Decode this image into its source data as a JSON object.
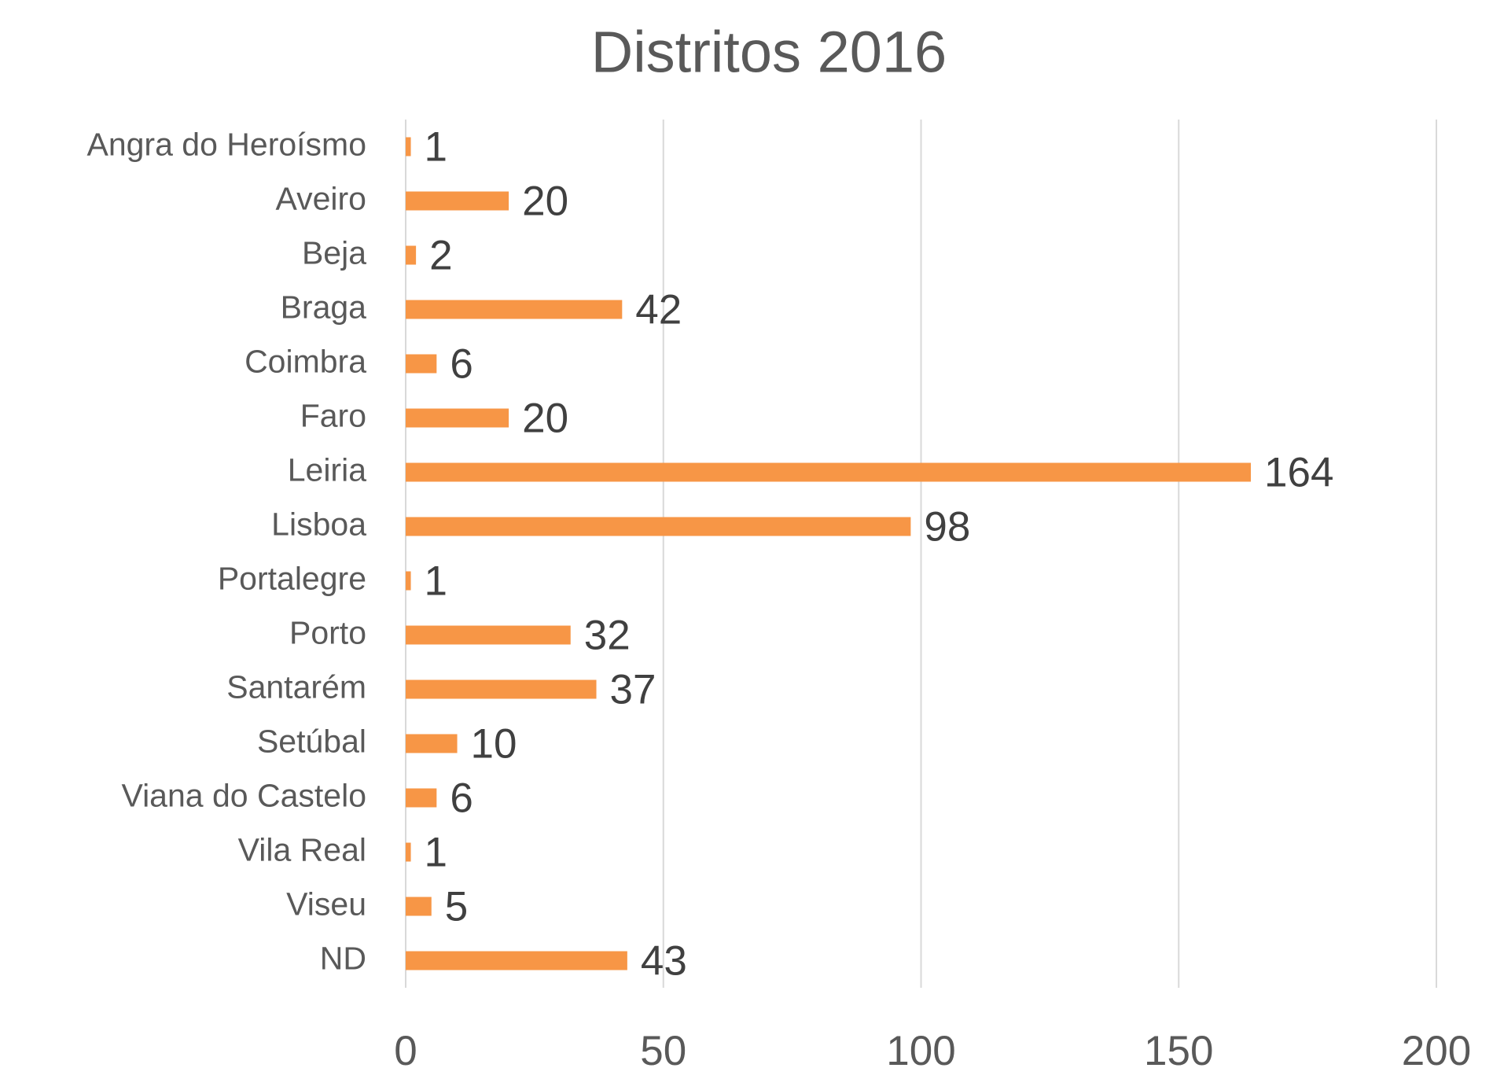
{
  "chart_data": {
    "type": "bar",
    "orientation": "horizontal",
    "title": "Distritos 2016",
    "categories": [
      "Angra do Heroísmo",
      "Aveiro",
      "Beja",
      "Braga",
      "Coimbra",
      "Faro",
      "Leiria",
      "Lisboa",
      "Portalegre",
      "Porto",
      "Santarém",
      "Setúbal",
      "Viana do Castelo",
      "Vila Real",
      "Viseu",
      "ND"
    ],
    "values": [
      1,
      20,
      2,
      42,
      6,
      20,
      164,
      98,
      1,
      32,
      37,
      10,
      6,
      1,
      5,
      43
    ],
    "color": "#f79646",
    "xlim": [
      0,
      200
    ],
    "xticks": [
      0,
      50,
      100,
      150,
      200
    ],
    "grid": true
  }
}
